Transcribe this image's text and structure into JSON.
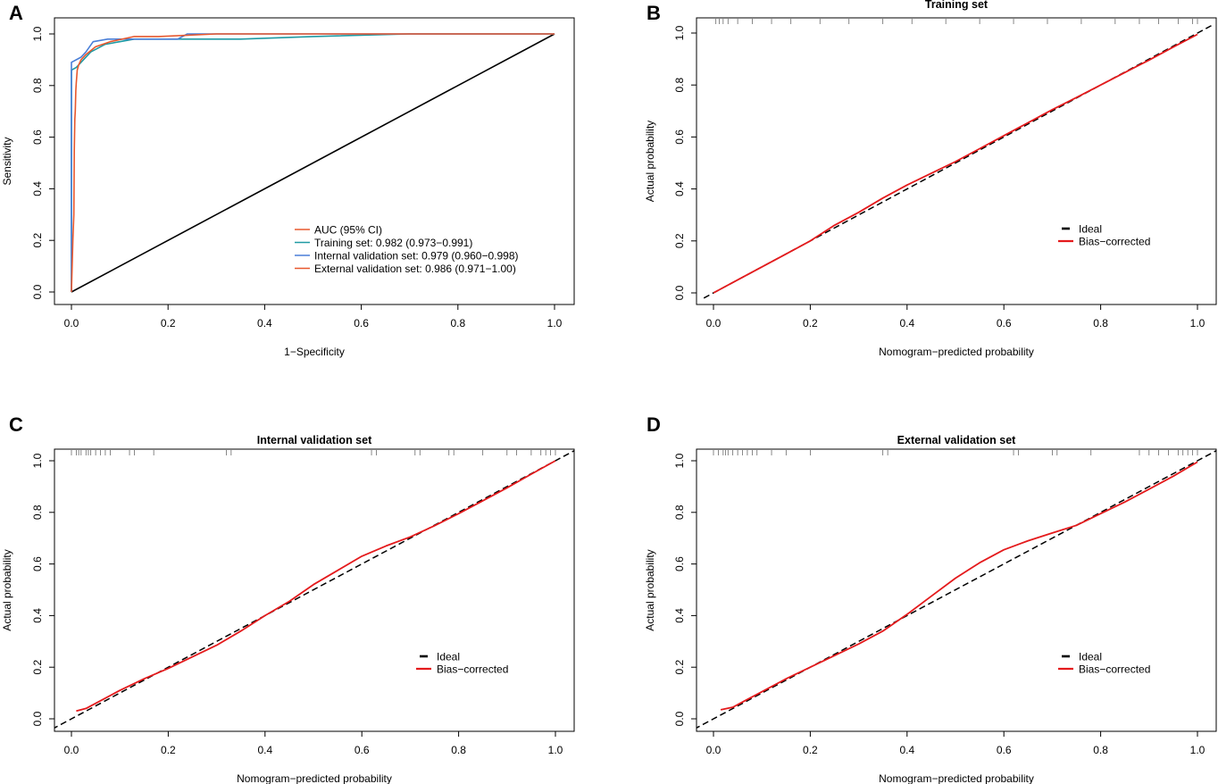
{
  "chart_data": [
    {
      "id": "A",
      "type": "line",
      "panel_label": "A",
      "title": "",
      "xlabel": "1−Specificity",
      "ylabel": "Sensitivity",
      "xlim": [
        0,
        1
      ],
      "ylim": [
        0,
        1
      ],
      "ticks": {
        "x": [
          "0.0",
          "0.2",
          "0.4",
          "0.6",
          "0.8",
          "1.0"
        ],
        "y": [
          "0.0",
          "0.2",
          "0.4",
          "0.6",
          "0.8",
          "1.0"
        ]
      },
      "legend_position": "bottom-right",
      "legend_title": {
        "label": "AUC (95% CI)",
        "color": "#e8582e"
      },
      "reference_line": {
        "x": [
          0,
          1
        ],
        "y": [
          0,
          1
        ],
        "color": "#000000"
      },
      "series": [
        {
          "name": "Training set: 0.982 (0.973−0.991)",
          "color": "#1f9aa3",
          "x": [
            0,
            0,
            0.01,
            0.02,
            0.04,
            0.07,
            0.1,
            0.13,
            0.2,
            0.35,
            0.5,
            0.7,
            1.0
          ],
          "y": [
            0,
            0.86,
            0.87,
            0.89,
            0.93,
            0.96,
            0.97,
            0.98,
            0.98,
            0.98,
            0.99,
            1.0,
            1.0
          ]
        },
        {
          "name": "Internal validation set: 0.979 (0.960−0.998)",
          "color": "#4a7fd8",
          "x": [
            0,
            0,
            0,
            0.02,
            0.03,
            0.045,
            0.075,
            0.12,
            0.22,
            0.24,
            0.5,
            1.0
          ],
          "y": [
            0,
            0.18,
            0.89,
            0.91,
            0.93,
            0.97,
            0.98,
            0.98,
            0.98,
            1.0,
            1.0,
            1.0
          ]
        },
        {
          "name": "External validation set: 0.986 (0.971−1.00)",
          "color": "#e8582e",
          "x": [
            0,
            0.003,
            0.005,
            0.006,
            0.007,
            0.008,
            0.009,
            0.01,
            0.012,
            0.015,
            0.02,
            0.03,
            0.05,
            0.08,
            0.13,
            0.18,
            0.3,
            1.0
          ],
          "y": [
            0,
            0.2,
            0.3,
            0.55,
            0.67,
            0.7,
            0.78,
            0.81,
            0.86,
            0.88,
            0.9,
            0.92,
            0.95,
            0.97,
            0.99,
            0.99,
            1.0,
            1.0
          ]
        }
      ]
    },
    {
      "id": "B",
      "type": "line",
      "panel_label": "B",
      "title": "Training set",
      "xlabel": "Nomogram−predicted probability",
      "ylabel": "Actual probability",
      "xlim": [
        0,
        1
      ],
      "ylim": [
        0,
        1
      ],
      "ticks": {
        "x": [
          "0.0",
          "0.2",
          "0.4",
          "0.6",
          "0.8",
          "1.0"
        ],
        "y": [
          "0.0",
          "0.2",
          "0.4",
          "0.6",
          "0.8",
          "1.0"
        ]
      },
      "legend_position": "right",
      "rug": [
        0.005,
        0.012,
        0.02,
        0.03,
        0.05,
        0.08,
        0.12,
        0.16,
        0.22,
        0.28,
        0.35,
        0.41,
        0.48,
        0.55,
        0.62,
        0.69,
        0.76,
        0.83,
        0.88,
        0.92,
        0.96,
        0.99,
        1.0
      ],
      "series": [
        {
          "name": "Ideal",
          "color": "#000000",
          "dashed": true,
          "x": [
            -0.02,
            1.03
          ],
          "y": [
            -0.02,
            1.03
          ]
        },
        {
          "name": "Bias−corrected",
          "color": "#e41a1c",
          "dashed": false,
          "x": [
            0,
            0.05,
            0.1,
            0.15,
            0.2,
            0.25,
            0.3,
            0.35,
            0.4,
            0.45,
            0.5,
            0.55,
            0.6,
            0.65,
            0.7,
            0.75,
            0.8,
            0.85,
            0.9,
            0.95,
            1.0
          ],
          "y": [
            0,
            0.05,
            0.1,
            0.15,
            0.2,
            0.26,
            0.31,
            0.365,
            0.415,
            0.46,
            0.505,
            0.555,
            0.605,
            0.655,
            0.705,
            0.752,
            0.8,
            0.848,
            0.896,
            0.946,
            0.995
          ]
        }
      ]
    },
    {
      "id": "C",
      "type": "line",
      "panel_label": "C",
      "title": "Internal validation set",
      "xlabel": "Nomogram−predicted probability",
      "ylabel": "Actual probability",
      "xlim": [
        0,
        1
      ],
      "ylim": [
        0,
        1
      ],
      "ticks": {
        "x": [
          "0.0",
          "0.2",
          "0.4",
          "0.6",
          "0.8",
          "1.0"
        ],
        "y": [
          "0.0",
          "0.2",
          "0.4",
          "0.6",
          "0.8",
          "1.0"
        ]
      },
      "legend_position": "right",
      "rug": [
        0.0,
        0.01,
        0.015,
        0.02,
        0.03,
        0.035,
        0.04,
        0.05,
        0.06,
        0.07,
        0.08,
        0.12,
        0.13,
        0.17,
        0.32,
        0.33,
        0.62,
        0.63,
        0.71,
        0.72,
        0.78,
        0.79,
        0.85,
        0.9,
        0.92,
        0.95,
        0.97,
        0.98,
        0.99,
        1.0
      ],
      "series": [
        {
          "name": "Ideal",
          "color": "#000000",
          "dashed": true,
          "x": [
            -0.04,
            1.04
          ],
          "y": [
            -0.04,
            1.04
          ]
        },
        {
          "name": "Bias−corrected",
          "color": "#e41a1c",
          "dashed": false,
          "x": [
            0.01,
            0.03,
            0.05,
            0.1,
            0.15,
            0.2,
            0.25,
            0.3,
            0.35,
            0.4,
            0.45,
            0.5,
            0.55,
            0.6,
            0.65,
            0.7,
            0.75,
            0.8,
            0.85,
            0.9,
            0.95,
            1.0
          ],
          "y": [
            0.03,
            0.04,
            0.06,
            0.11,
            0.155,
            0.195,
            0.24,
            0.285,
            0.34,
            0.4,
            0.455,
            0.52,
            0.575,
            0.63,
            0.67,
            0.705,
            0.748,
            0.795,
            0.845,
            0.895,
            0.948,
            1.0
          ]
        }
      ]
    },
    {
      "id": "D",
      "type": "line",
      "panel_label": "D",
      "title": "External validation set",
      "xlabel": "Nomogram−predicted probability",
      "ylabel": "Actual probability",
      "xlim": [
        0,
        1
      ],
      "ylim": [
        0,
        1
      ],
      "ticks": {
        "x": [
          "0.0",
          "0.2",
          "0.4",
          "0.6",
          "0.8",
          "1.0"
        ],
        "y": [
          "0.0",
          "0.2",
          "0.4",
          "0.6",
          "0.8",
          "1.0"
        ]
      },
      "legend_position": "right",
      "rug": [
        0.0,
        0.01,
        0.02,
        0.025,
        0.03,
        0.04,
        0.05,
        0.06,
        0.07,
        0.08,
        0.09,
        0.12,
        0.15,
        0.2,
        0.35,
        0.36,
        0.62,
        0.63,
        0.7,
        0.71,
        0.78,
        0.88,
        0.9,
        0.92,
        0.94,
        0.96,
        0.97,
        0.98,
        0.99,
        1.0
      ],
      "series": [
        {
          "name": "Ideal",
          "color": "#000000",
          "dashed": true,
          "x": [
            -0.04,
            1.04
          ],
          "y": [
            -0.04,
            1.04
          ]
        },
        {
          "name": "Bias−corrected",
          "color": "#e41a1c",
          "dashed": false,
          "x": [
            0.015,
            0.04,
            0.06,
            0.1,
            0.15,
            0.2,
            0.25,
            0.3,
            0.35,
            0.4,
            0.45,
            0.5,
            0.55,
            0.6,
            0.65,
            0.7,
            0.75,
            0.8,
            0.85,
            0.9,
            0.95,
            1.0
          ],
          "y": [
            0.035,
            0.045,
            0.065,
            0.105,
            0.155,
            0.2,
            0.245,
            0.29,
            0.34,
            0.405,
            0.475,
            0.545,
            0.605,
            0.655,
            0.69,
            0.72,
            0.75,
            0.795,
            0.84,
            0.89,
            0.94,
            0.995
          ]
        }
      ]
    }
  ],
  "legends": {
    "A": [
      "AUC (95% CI)",
      "Training set: 0.982 (0.973−0.991)",
      "Internal validation set: 0.979 (0.960−0.998)",
      "External validation set: 0.986 (0.971−1.00)"
    ],
    "calibration": [
      "Ideal",
      "Bias−corrected"
    ]
  }
}
